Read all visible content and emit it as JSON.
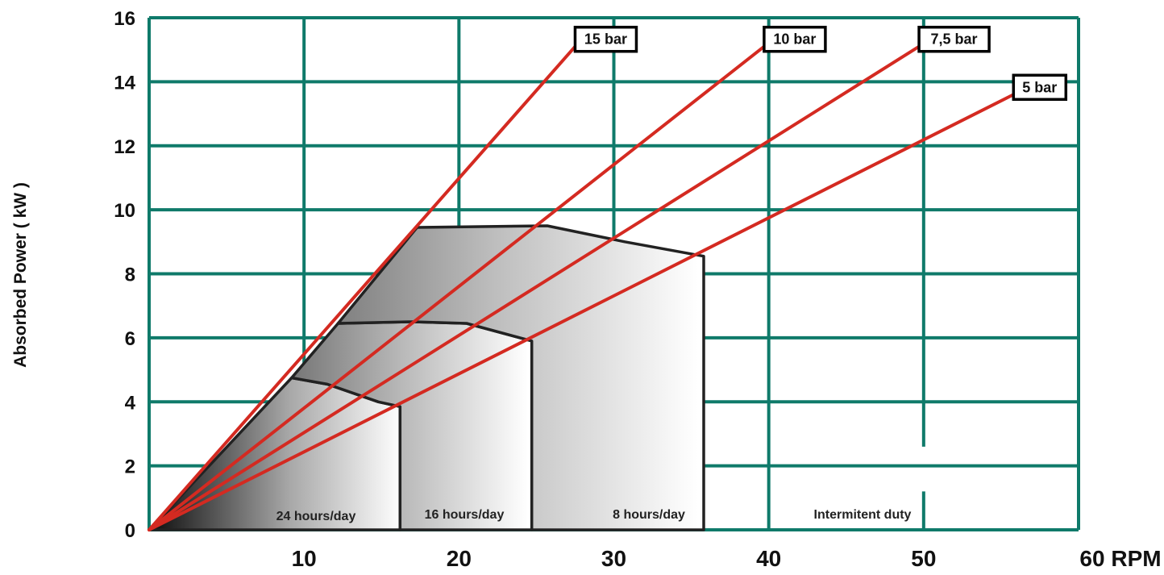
{
  "chart_data": {
    "type": "line",
    "ylabel": "Absorbed Power ( kW )",
    "xlabel": "",
    "x_ticks": [
      "10",
      "20",
      "30",
      "40",
      "50",
      "60 RPM"
    ],
    "y_ticks": [
      "0",
      "2",
      "4",
      "6",
      "8",
      "10",
      "12",
      "14",
      "16"
    ],
    "xlim": [
      0,
      60
    ],
    "ylim": [
      0,
      16
    ],
    "grid": true,
    "colors": {
      "grid": "#0f7a6a",
      "series": "#d42a21",
      "boundary": "#222222"
    },
    "series": [
      {
        "name": "15 bar",
        "points": [
          [
            0,
            0
          ],
          [
            27.5,
            15.1
          ]
        ]
      },
      {
        "name": "10 bar",
        "points": [
          [
            0,
            0
          ],
          [
            39.7,
            15.1
          ]
        ]
      },
      {
        "name": "7,5 bar",
        "points": [
          [
            0,
            0
          ],
          [
            49.7,
            15.1
          ]
        ]
      },
      {
        "name": "5 bar",
        "points": [
          [
            0,
            0
          ],
          [
            55.8,
            13.6
          ]
        ]
      }
    ],
    "regions": [
      {
        "name": "24 hours/day",
        "boundary": [
          [
            0,
            0
          ],
          [
            9.2,
            4.75
          ],
          [
            11.5,
            4.55
          ],
          [
            14.8,
            4.0
          ],
          [
            16.2,
            3.85
          ],
          [
            16.2,
            0
          ]
        ]
      },
      {
        "name": "16 hours/day",
        "boundary": [
          [
            16.2,
            0
          ],
          [
            16.2,
            3.85
          ],
          [
            14.8,
            4.0
          ],
          [
            11.5,
            4.55
          ],
          [
            9.2,
            4.75
          ],
          [
            12.2,
            6.45
          ],
          [
            17.0,
            6.5
          ],
          [
            20.5,
            6.45
          ],
          [
            24.7,
            5.9
          ],
          [
            24.7,
            0
          ]
        ]
      },
      {
        "name": "8 hours/day",
        "boundary": [
          [
            24.7,
            0
          ],
          [
            24.7,
            5.9
          ],
          [
            20.5,
            6.45
          ],
          [
            17.0,
            6.5
          ],
          [
            12.2,
            6.45
          ],
          [
            17.3,
            9.45
          ],
          [
            25.7,
            9.5
          ],
          [
            30.7,
            9.0
          ],
          [
            35.8,
            8.55
          ],
          [
            35.8,
            0
          ]
        ]
      },
      {
        "name": "Intermitent duty",
        "boundary": []
      }
    ]
  }
}
